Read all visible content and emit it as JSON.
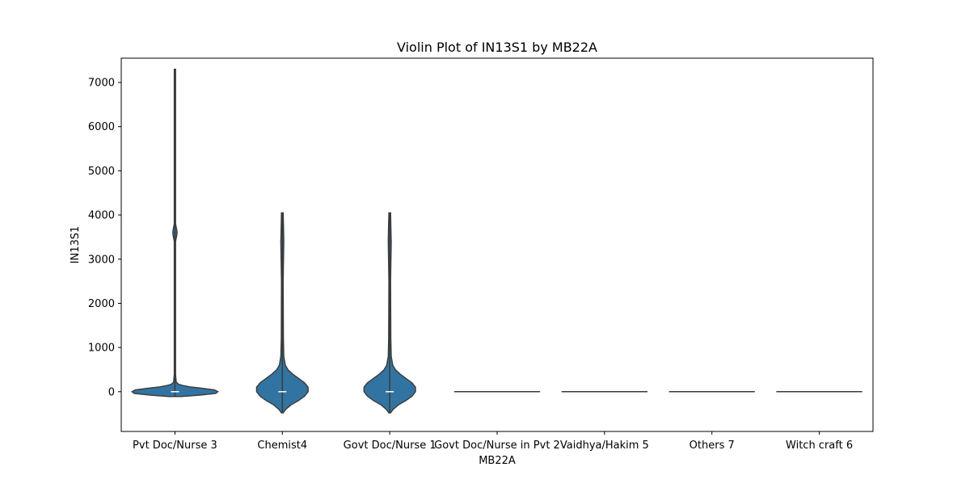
{
  "chart_data": {
    "type": "violin",
    "title": "Violin Plot of IN13S1 by MB22A",
    "xlabel": "MB22A",
    "ylabel": "IN13S1",
    "ylim": [
      -900,
      7550
    ],
    "yticks": [
      0,
      1000,
      2000,
      3000,
      4000,
      5000,
      6000,
      7000
    ],
    "grid": false,
    "color": "#3274a1",
    "edge_color": "#3a3a3a",
    "categories": [
      "Pvt Doc/Nurse 3",
      "Chemist4",
      "Govt Doc/Nurse 1",
      "Govt Doc/Nurse in Pvt 2",
      "Vaidhya/Hakim 5",
      "Others 7",
      "Witch craft 6"
    ],
    "series": [
      {
        "category": "Pvt Doc/Nurse 3",
        "min": -110,
        "max": 7300,
        "median": 0,
        "profile": [
          [
            -110,
            0.14
          ],
          [
            -80,
            0.55
          ],
          [
            -40,
            0.95
          ],
          [
            0,
            1.0
          ],
          [
            40,
            0.92
          ],
          [
            80,
            0.62
          ],
          [
            110,
            0.35
          ],
          [
            140,
            0.18
          ],
          [
            170,
            0.08
          ],
          [
            220,
            0.03
          ],
          [
            400,
            0.015
          ],
          [
            3400,
            0.015
          ],
          [
            3550,
            0.045
          ],
          [
            3600,
            0.05
          ],
          [
            3650,
            0.045
          ],
          [
            3800,
            0.015
          ],
          [
            7300,
            0.015
          ]
        ]
      },
      {
        "category": "Chemist4",
        "min": -480,
        "max": 4050,
        "median": 0,
        "profile": [
          [
            -480,
            0.02
          ],
          [
            -400,
            0.08
          ],
          [
            -300,
            0.2
          ],
          [
            -200,
            0.38
          ],
          [
            -100,
            0.52
          ],
          [
            0,
            0.6
          ],
          [
            100,
            0.6
          ],
          [
            200,
            0.52
          ],
          [
            300,
            0.38
          ],
          [
            400,
            0.24
          ],
          [
            500,
            0.13
          ],
          [
            600,
            0.07
          ],
          [
            800,
            0.035
          ],
          [
            1200,
            0.025
          ],
          [
            2500,
            0.02
          ],
          [
            3400,
            0.035
          ],
          [
            3600,
            0.03
          ],
          [
            4050,
            0.02
          ]
        ]
      },
      {
        "category": "Govt Doc/Nurse 1",
        "min": -480,
        "max": 4050,
        "median": 0,
        "profile": [
          [
            -480,
            0.02
          ],
          [
            -400,
            0.08
          ],
          [
            -300,
            0.2
          ],
          [
            -200,
            0.38
          ],
          [
            -100,
            0.52
          ],
          [
            0,
            0.6
          ],
          [
            100,
            0.6
          ],
          [
            200,
            0.52
          ],
          [
            300,
            0.38
          ],
          [
            400,
            0.24
          ],
          [
            500,
            0.13
          ],
          [
            600,
            0.07
          ],
          [
            800,
            0.035
          ],
          [
            1200,
            0.025
          ],
          [
            2500,
            0.02
          ],
          [
            3400,
            0.035
          ],
          [
            3600,
            0.03
          ],
          [
            4050,
            0.02
          ]
        ]
      },
      {
        "category": "Govt Doc/Nurse in Pvt 2",
        "min": 0,
        "max": 0,
        "median": 0,
        "profile": []
      },
      {
        "category": "Vaidhya/Hakim 5",
        "min": 0,
        "max": 0,
        "median": 0,
        "profile": []
      },
      {
        "category": "Others 7",
        "min": 0,
        "max": 0,
        "median": 0,
        "profile": []
      },
      {
        "category": "Witch craft 6",
        "min": 0,
        "max": 0,
        "median": 0,
        "profile": []
      }
    ]
  }
}
